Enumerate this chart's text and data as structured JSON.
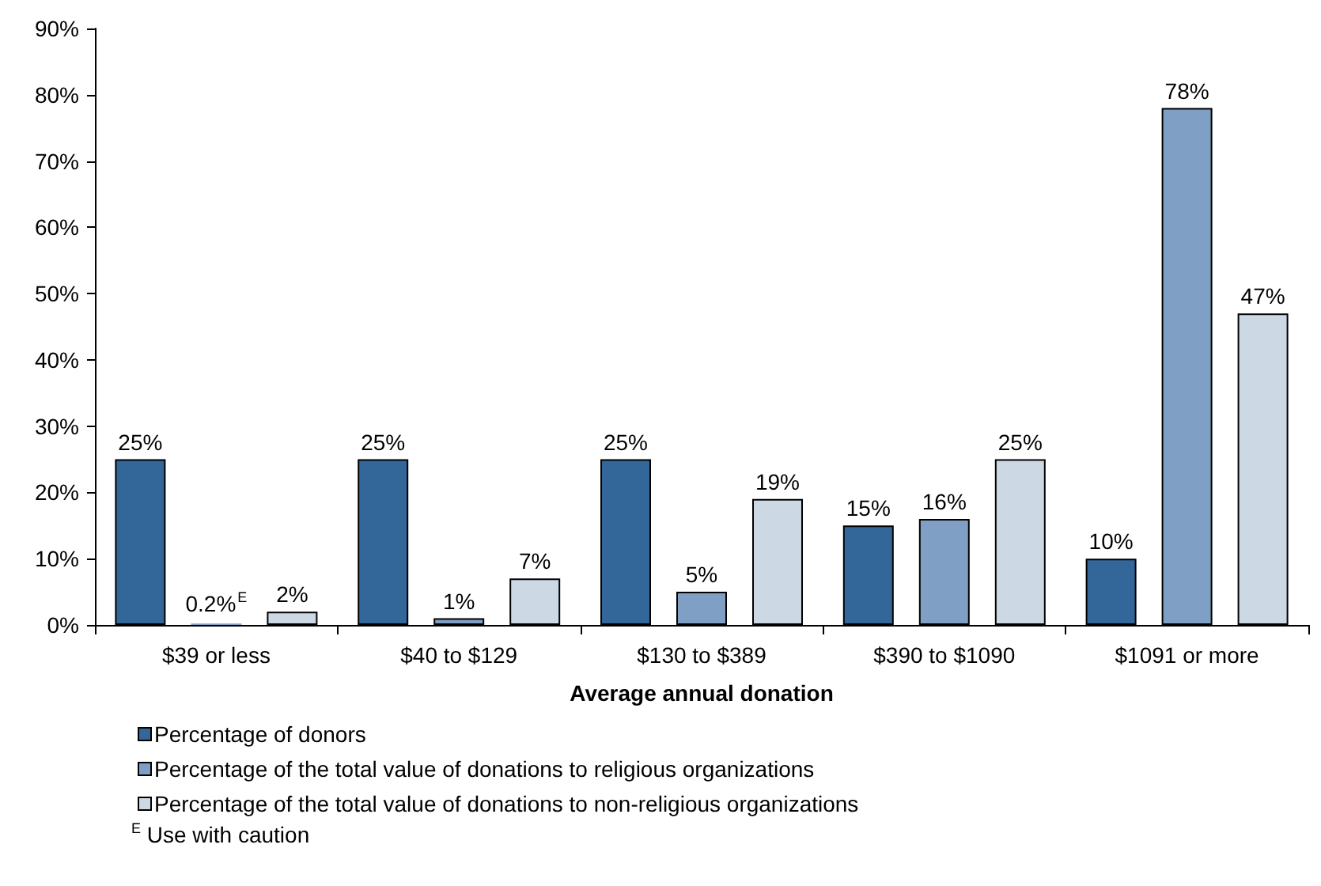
{
  "chart_data": {
    "type": "bar",
    "xlabel": "Average annual donation",
    "categories": [
      "$39 or less",
      "$40 to $129",
      "$130 to $389",
      "$390 to $1090",
      "$1091 or more"
    ],
    "series": [
      {
        "name": "Percentage of donors",
        "color": "#336699",
        "values": [
          25,
          25,
          25,
          15,
          10
        ],
        "value_labels": [
          "25%",
          "25%",
          "25%",
          "15%",
          "10%"
        ]
      },
      {
        "name": "Percentage of the total value of donations to religious organizations",
        "color": "#7f9fc4",
        "values": [
          0.2,
          1,
          5,
          16,
          78
        ],
        "value_labels": [
          "0.2%$^{E}$",
          "1%",
          "5%",
          "16%",
          "78%"
        ]
      },
      {
        "name": "Percentage of the total value of donations to non-religious organizations",
        "color": "#cdd8e5",
        "values": [
          2,
          7,
          19,
          25,
          47
        ],
        "value_labels": [
          "2%",
          "7%",
          "19%",
          "25%",
          "47%"
        ]
      }
    ],
    "ylim": [
      0,
      90
    ],
    "yticks": [
      {
        "value": 0,
        "label": "0%"
      },
      {
        "value": 10,
        "label": "10%"
      },
      {
        "value": 20,
        "label": "20%"
      },
      {
        "value": 30,
        "label": "30%"
      },
      {
        "value": 40,
        "label": "40%"
      },
      {
        "value": 50,
        "label": "50%"
      },
      {
        "value": 60,
        "label": "60%"
      },
      {
        "value": 70,
        "label": "70%"
      },
      {
        "value": 80,
        "label": "80%"
      },
      {
        "value": 90,
        "label": "90%"
      }
    ],
    "grid": false,
    "legend": "bottom",
    "annotations": [
      "$^{E}$ Use with caution"
    ]
  }
}
